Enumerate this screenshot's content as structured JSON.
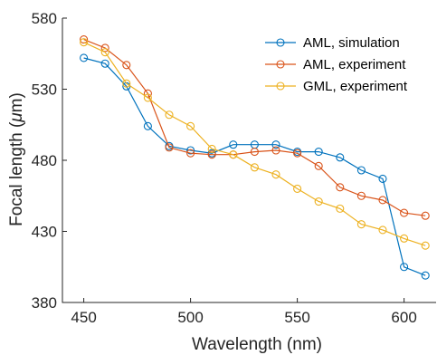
{
  "chart_data": {
    "type": "line",
    "title": "",
    "xlabel": "Wavelength (nm)",
    "ylabel_prefix": "Focal length (",
    "ylabel_mu": "μ",
    "ylabel_suffix": "m)",
    "xlim": [
      440,
      615
    ],
    "ylim": [
      380,
      580
    ],
    "xticks": [
      450,
      500,
      550,
      600
    ],
    "yticks": [
      380,
      430,
      480,
      530,
      580
    ],
    "grid": false,
    "legend_position": "top-right",
    "x": [
      450,
      460,
      470,
      480,
      490,
      500,
      510,
      520,
      530,
      540,
      550,
      560,
      570,
      580,
      590,
      600,
      610
    ],
    "series": [
      {
        "name": "AML, simulation",
        "color": "#0072BD",
        "values": [
          552,
          548,
          532,
          504,
          490,
          487,
          485,
          491,
          491,
          491,
          486,
          486,
          482,
          473,
          467,
          405,
          399
        ]
      },
      {
        "name": "AML, experiment",
        "color": "#D95319",
        "values": [
          565,
          559,
          547,
          527,
          489,
          485,
          484,
          484,
          486,
          487,
          485,
          476,
          461,
          455,
          452,
          443,
          441
        ]
      },
      {
        "name": "GML, experiment",
        "color": "#EDB120",
        "values": [
          563,
          556,
          534,
          524,
          512,
          504,
          488,
          484,
          475,
          470,
          460,
          451,
          446,
          435,
          431,
          425,
          420
        ]
      }
    ]
  }
}
